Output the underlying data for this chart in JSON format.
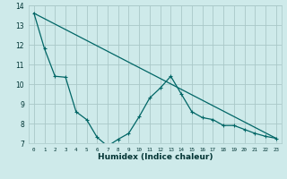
{
  "xlabel": "Humidex (Indice chaleur)",
  "bg_color": "#ceeaea",
  "grid_color": "#aac8c8",
  "line_color": "#006666",
  "xlim": [
    -0.5,
    23.5
  ],
  "ylim": [
    7,
    14
  ],
  "xtick_labels": [
    "0",
    "1",
    "2",
    "3",
    "4",
    "5",
    "6",
    "7",
    "8",
    "9",
    "10",
    "11",
    "12",
    "13",
    "14",
    "15",
    "16",
    "17",
    "18",
    "19",
    "20",
    "21",
    "22",
    "23"
  ],
  "ytick_labels": [
    "7",
    "8",
    "9",
    "10",
    "11",
    "12",
    "13",
    "14"
  ],
  "series1_x": [
    0,
    1,
    2,
    3,
    4,
    5,
    6,
    7,
    8,
    9,
    10,
    11,
    12,
    13,
    14,
    15,
    16,
    17,
    18,
    19,
    20,
    21,
    22,
    23
  ],
  "series1_y": [
    13.6,
    11.8,
    10.4,
    10.35,
    8.6,
    8.2,
    7.3,
    6.85,
    7.2,
    7.5,
    8.35,
    9.3,
    9.8,
    10.4,
    9.5,
    8.6,
    8.3,
    8.2,
    7.9,
    7.9,
    7.7,
    7.5,
    7.35,
    7.25
  ],
  "series2_x": [
    0,
    23
  ],
  "series2_y": [
    13.6,
    7.25
  ],
  "marker_size": 3,
  "linewidth": 0.9
}
